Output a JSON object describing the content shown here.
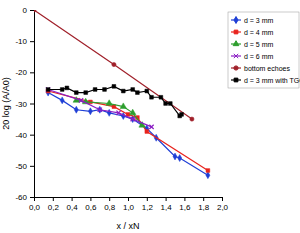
{
  "chart_data": {
    "type": "line",
    "x_label": "x / xN",
    "y_label": "20 log (A/A0)",
    "xlim": [
      0,
      2
    ],
    "ylim": [
      -60,
      0
    ],
    "xticks": [
      {
        "value": 0,
        "label": "0,0"
      },
      {
        "value": 0.2,
        "label": "0,2"
      },
      {
        "value": 0.4,
        "label": "0,4"
      },
      {
        "value": 0.6,
        "label": "0,6"
      },
      {
        "value": 0.8,
        "label": "0,8"
      },
      {
        "value": 1,
        "label": "1,0"
      },
      {
        "value": 1.2,
        "label": "1,2"
      },
      {
        "value": 1.4,
        "label": "1,4"
      },
      {
        "value": 1.6,
        "label": "1,6"
      },
      {
        "value": 1.8,
        "label": "1,8"
      },
      {
        "value": 2,
        "label": "2,0"
      }
    ],
    "yticks": [
      -60,
      -50,
      -40,
      -30,
      -20,
      -10,
      0
    ],
    "grid": false,
    "legend": "right",
    "series": [
      {
        "name": "d = 3 mm",
        "color": "#1f3fd6",
        "marker": "diamond",
        "x": [
          0.15,
          0.3,
          0.45,
          0.6,
          0.7,
          0.8,
          0.95,
          1.05,
          1.2,
          1.3,
          1.5,
          1.55,
          1.85
        ],
        "values": [
          -26.5,
          -29,
          -32,
          -32.5,
          -32,
          -33,
          -34,
          -35,
          -38,
          -41,
          -47,
          -47.5,
          -53
        ]
      },
      {
        "name": "d = 4 mm",
        "color": "#e8231d",
        "marker": "square",
        "x": [
          0.15,
          0.6,
          0.85,
          1.0,
          1.1,
          1.2,
          1.85
        ],
        "values": [
          -26,
          -29.5,
          -31,
          -33.5,
          -34.5,
          -39,
          -51.5
        ]
      },
      {
        "name": "d = 5 mm",
        "color": "#2e9e2e",
        "marker": "triangle",
        "x": [
          0.45,
          0.55,
          0.8,
          0.95,
          1.05,
          1.15
        ],
        "values": [
          -29,
          -29.5,
          -30,
          -31,
          -33,
          -37
        ]
      },
      {
        "name": "d = 6 mm",
        "color": "#8b1fc4",
        "marker": "x",
        "x": [
          0.15,
          0.5,
          0.7,
          0.9,
          1.05,
          1.25
        ],
        "values": [
          -25.5,
          -29,
          -32,
          -33,
          -35,
          -37.5
        ]
      },
      {
        "name": "bottom echoes",
        "color": "#a0202a",
        "marker": "circle",
        "x": [
          0,
          0.85,
          1.68
        ],
        "values": [
          0,
          -17.5,
          -35
        ]
      },
      {
        "name": "d = 3 mm with TGC",
        "color": "#000000",
        "marker": "square",
        "x": [
          0.15,
          0.3,
          0.35,
          0.45,
          0.55,
          0.65,
          0.75,
          0.85,
          0.95,
          1.05,
          1.1,
          1.2,
          1.25,
          1.35,
          1.4,
          1.45,
          1.55,
          1.57
        ],
        "values": [
          -25.5,
          -25.5,
          -25,
          -26.5,
          -26.5,
          -25.5,
          -25.5,
          -24.5,
          -26,
          -25.5,
          -26.5,
          -26,
          -28,
          -28,
          -30,
          -30,
          -34,
          -33.5
        ]
      }
    ]
  }
}
